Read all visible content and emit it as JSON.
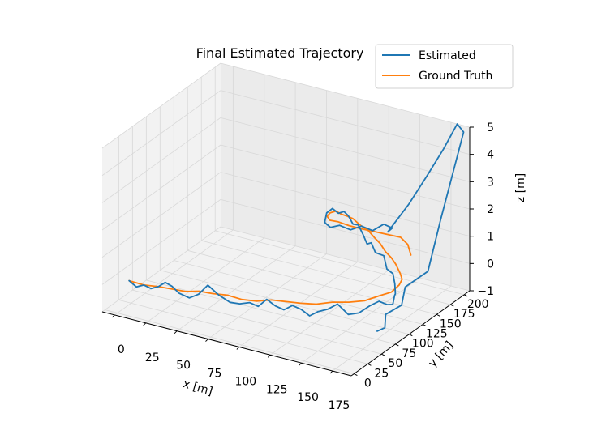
{
  "chart_data": {
    "type": "line",
    "projection": "3d",
    "title": "Final Estimated Trajectory",
    "xlabel": "x [m]",
    "ylabel": "y [m]",
    "zlabel": "z [m]",
    "xlim": [
      -10,
      190
    ],
    "ylim": [
      -5,
      210
    ],
    "zlim": [
      -1,
      5
    ],
    "x_ticks": [
      0,
      25,
      50,
      75,
      100,
      125,
      150,
      175
    ],
    "y_ticks": [
      0,
      25,
      50,
      75,
      100,
      125,
      150,
      175,
      200
    ],
    "z_ticks": [
      -1,
      0,
      1,
      2,
      3,
      4,
      5
    ],
    "x_tick_labels": [
      "0",
      "25",
      "50",
      "75",
      "100",
      "125",
      "150",
      "175"
    ],
    "y_tick_labels": [
      "0",
      "25",
      "50",
      "75",
      "100",
      "125",
      "150",
      "175",
      "200"
    ],
    "z_tick_labels": [
      "−1",
      "0",
      "1",
      "2",
      "3",
      "4",
      "5"
    ],
    "grid": true,
    "legend_position": "top-right",
    "colors": {
      "Estimated": "#1f77b4",
      "Ground Truth": "#ff7f0e"
    },
    "series": [
      {
        "name": "Estimated",
        "x": [
          5,
          10,
          15,
          20,
          25,
          30,
          35,
          40,
          48,
          55,
          62,
          70,
          78,
          85,
          92,
          98,
          104,
          110,
          116,
          122,
          128,
          134,
          140,
          146,
          152,
          158,
          163,
          168,
          172,
          175,
          176,
          174,
          171,
          167,
          162,
          156,
          150,
          144,
          138,
          132,
          126,
          120,
          114,
          108,
          102,
          97,
          93,
          89,
          86,
          84,
          86,
          90,
          96,
          104,
          112,
          120,
          128,
          136,
          142,
          138,
          150,
          160,
          170,
          180,
          186,
          182,
          183,
          178,
          184,
          180,
          186,
          182
        ],
        "y": [
          10,
          12,
          14,
          16,
          18,
          19,
          20,
          21,
          22,
          23,
          24,
          26,
          28,
          30,
          32,
          34,
          36,
          38,
          40,
          42,
          44,
          46,
          48,
          52,
          56,
          62,
          70,
          78,
          86,
          94,
          102,
          110,
          118,
          126,
          134,
          142,
          150,
          158,
          164,
          170,
          176,
          182,
          188,
          193,
          197,
          200,
          201,
          200,
          196,
          190,
          182,
          175,
          170,
          168,
          170,
          172,
          174,
          176,
          178,
          179,
          190,
          200,
          208,
          210,
          208,
          175,
          150,
          120,
          100,
          80,
          65,
          60
        ],
        "z": [
          0.1,
          -0.1,
          0.0,
          -0.1,
          0.0,
          0.2,
          0.1,
          -0.1,
          -0.2,
          0.0,
          0.4,
          0.1,
          -0.1,
          -0.1,
          0.0,
          -0.1,
          0.2,
          0.0,
          -0.1,
          0.1,
          0.0,
          -0.2,
          0.0,
          0.1,
          0.3,
          -0.1,
          -0.1,
          0.1,
          0.2,
          0.0,
          -0.1,
          0.1,
          0.0,
          0.2,
          0.4,
          0.3,
          0.2,
          0.5,
          0.4,
          0.3,
          0.5,
          0.3,
          0.5,
          0.7,
          0.6,
          0.8,
          0.9,
          0.8,
          1.0,
          0.9,
          0.7,
          0.8,
          0.8,
          1.0,
          0.9,
          1.1,
          1.0,
          1.3,
          1.2,
          1.0,
          2.0,
          3.0,
          4.0,
          5.0,
          4.8,
          2.0,
          0.5,
          0.3,
          0.0,
          -0.1,
          -0.3,
          -0.4
        ]
      },
      {
        "name": "Ground Truth",
        "x": [
          5,
          15,
          25,
          35,
          45,
          55,
          65,
          75,
          85,
          95,
          105,
          115,
          125,
          135,
          145,
          155,
          163,
          170,
          174,
          175,
          172,
          166,
          158,
          150,
          142,
          134,
          126,
          118,
          110,
          102,
          96,
          91,
          88,
          86,
          87,
          92,
          100,
          110,
          120,
          130,
          140,
          150,
          158,
          164
        ],
        "y": [
          10,
          14,
          18,
          20,
          22,
          24,
          26,
          30,
          34,
          38,
          42,
          46,
          50,
          56,
          62,
          70,
          80,
          92,
          104,
          116,
          128,
          138,
          148,
          158,
          166,
          174,
          182,
          188,
          193,
          197,
          199,
          200,
          198,
          192,
          184,
          178,
          174,
          172,
          172,
          173,
          174,
          175,
          170,
          162
        ],
        "z": [
          0.1,
          0.0,
          0.0,
          0.0,
          0.0,
          0.1,
          0.1,
          0.1,
          0.0,
          0.0,
          0.1,
          0.1,
          0.1,
          0.1,
          0.2,
          0.2,
          0.2,
          0.3,
          0.3,
          0.4,
          0.4,
          0.4,
          0.5,
          0.5,
          0.5,
          0.6,
          0.6,
          0.7,
          0.7,
          0.8,
          0.8,
          0.8,
          0.9,
          0.9,
          0.9,
          0.9,
          1.0,
          1.0,
          1.0,
          1.0,
          1.0,
          1.0,
          0.9,
          0.7
        ]
      }
    ]
  }
}
